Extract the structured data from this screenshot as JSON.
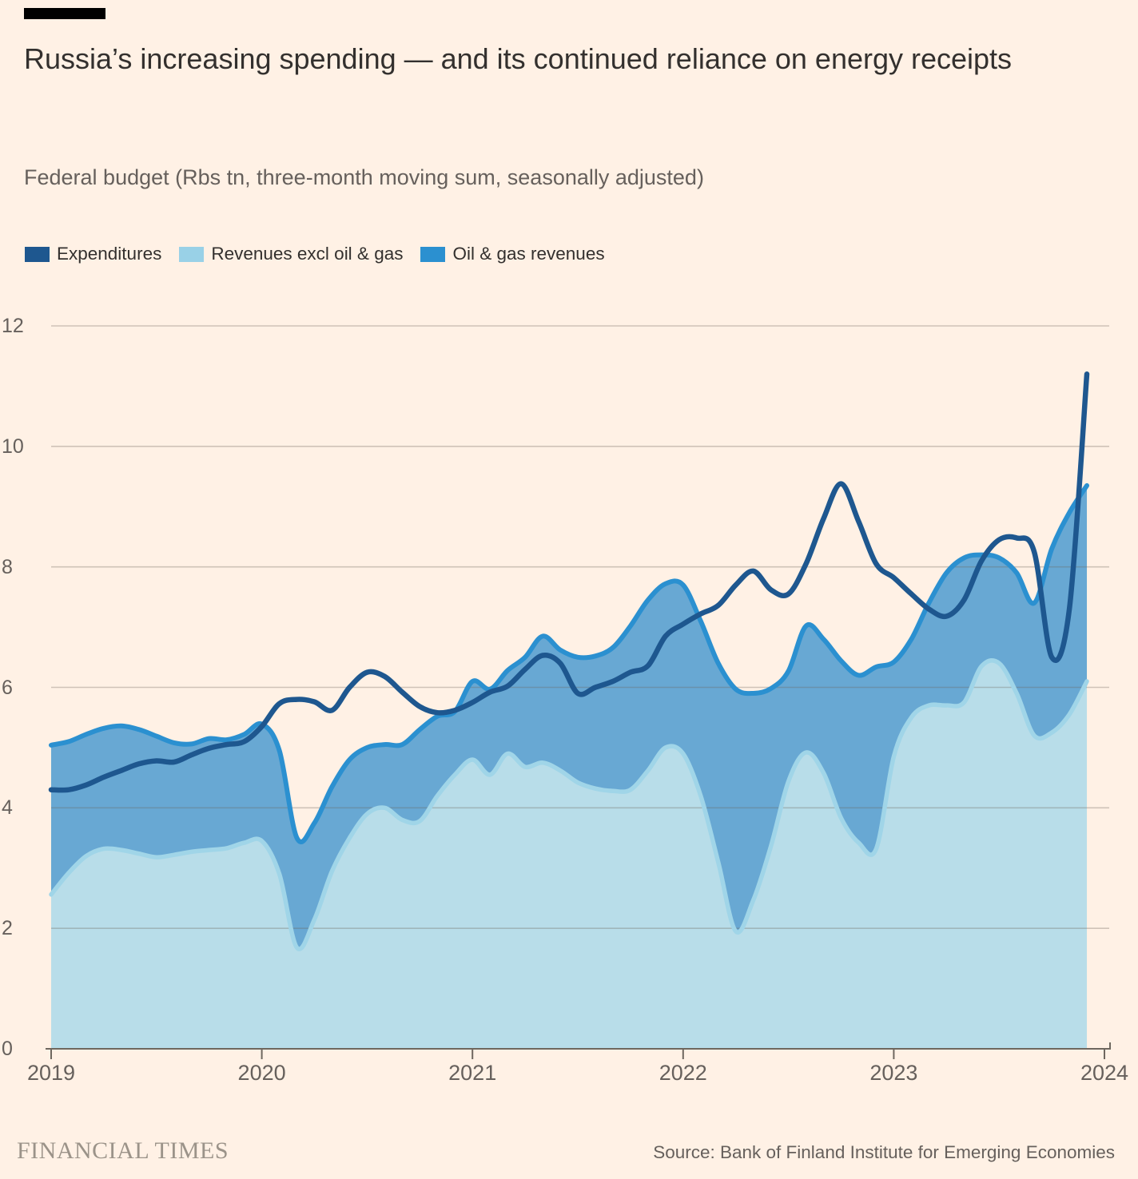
{
  "title": "Russia’s increasing spending — and its continued reliance on energy receipts",
  "subtitle": "Federal budget (Rbs tn, three-month moving sum, seasonally adjusted)",
  "legend": [
    {
      "label": "Expenditures",
      "color": "#1e578f"
    },
    {
      "label": "Revenues excl oil & gas",
      "color": "#99d1e7"
    },
    {
      "label": "Oil & gas revenues",
      "color": "#2b90d0"
    }
  ],
  "footer": {
    "brand": "FINANCIAL TIMES",
    "source": "Source: Bank of Finland Institute for Emerging Economies"
  },
  "colors": {
    "background": "#fff1e5",
    "gridline": "#6e675f",
    "axis": "#6e675f",
    "text_dark": "#33302e",
    "text_muted": "#66605c"
  },
  "chart_data": {
    "type": "area",
    "stacked": true,
    "frequency": "monthly",
    "x_start": "2019-01",
    "x_end": "2023-12",
    "x_tick_labels": [
      "2019",
      "2020",
      "2021",
      "2022",
      "2023",
      "2024"
    ],
    "y_ticks": [
      0,
      2,
      4,
      6,
      8,
      10,
      12
    ],
    "ylim": [
      0,
      12
    ],
    "grid": true,
    "legend_position": "top",
    "series": [
      {
        "name": "Revenues excl oil & gas",
        "role": "stack-bottom-area",
        "color_fill": "#b8dde9",
        "color_stroke": "#a0d5e8",
        "values": [
          2.56,
          2.92,
          3.2,
          3.32,
          3.3,
          3.24,
          3.18,
          3.22,
          3.27,
          3.3,
          3.33,
          3.42,
          3.45,
          2.9,
          1.68,
          2.15,
          2.95,
          3.5,
          3.9,
          4.0,
          3.8,
          3.78,
          4.2,
          4.55,
          4.8,
          4.55,
          4.9,
          4.68,
          4.75,
          4.62,
          4.42,
          4.32,
          4.28,
          4.3,
          4.62,
          5.0,
          4.9,
          4.2,
          3.1,
          1.95,
          2.47,
          3.36,
          4.44,
          4.92,
          4.58,
          3.83,
          3.42,
          3.32,
          4.85,
          5.5,
          5.7,
          5.7,
          5.75,
          6.35,
          6.4,
          5.9,
          5.2,
          5.25,
          5.55,
          6.1
        ]
      },
      {
        "name": "Oil & gas revenues",
        "role": "stack-top-area",
        "color_fill": "#68a8d3",
        "color_stroke": "#2b90d0",
        "values": [
          2.48,
          2.18,
          2.02,
          2.0,
          2.06,
          2.06,
          2.01,
          1.86,
          1.79,
          1.85,
          1.8,
          1.8,
          1.94,
          2.05,
          1.82,
          1.6,
          1.4,
          1.3,
          1.1,
          1.05,
          1.25,
          1.52,
          1.32,
          1.05,
          1.3,
          1.42,
          1.38,
          1.82,
          2.1,
          2.0,
          2.08,
          2.2,
          2.38,
          2.72,
          2.83,
          2.72,
          2.8,
          2.9,
          3.3,
          4.02,
          3.43,
          2.62,
          1.83,
          2.1,
          2.22,
          2.61,
          2.78,
          3.02,
          1.57,
          1.3,
          1.7,
          2.2,
          2.4,
          1.85,
          1.75,
          2.0,
          2.2,
          3.05,
          3.35,
          3.25
        ]
      },
      {
        "name": "Expenditures",
        "role": "line",
        "color": "#1e578f",
        "values": [
          4.3,
          4.3,
          4.38,
          4.51,
          4.62,
          4.73,
          4.78,
          4.76,
          4.88,
          4.99,
          5.05,
          5.1,
          5.35,
          5.73,
          5.8,
          5.76,
          5.62,
          6.0,
          6.25,
          6.18,
          5.92,
          5.68,
          5.58,
          5.62,
          5.75,
          5.92,
          6.02,
          6.3,
          6.53,
          6.4,
          5.9,
          6.0,
          6.1,
          6.25,
          6.36,
          6.85,
          7.05,
          7.22,
          7.36,
          7.7,
          7.93,
          7.62,
          7.55,
          8.05,
          8.8,
          9.38,
          8.75,
          8.05,
          7.82,
          7.55,
          7.3,
          7.18,
          7.45,
          8.1,
          8.45,
          8.48,
          8.25,
          6.5,
          7.3,
          11.2
        ]
      }
    ]
  }
}
